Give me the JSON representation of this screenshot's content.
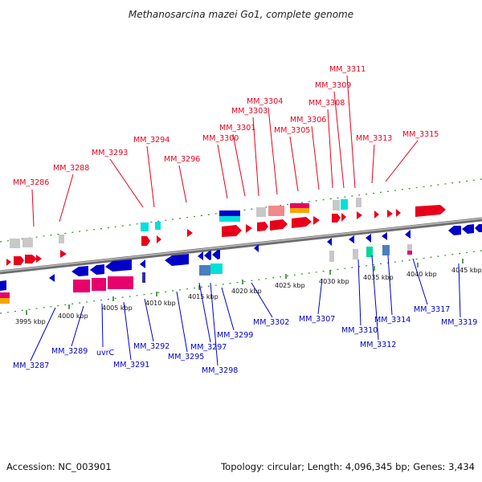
{
  "title": "Methanosarcina mazei Go1, complete genome",
  "footer": {
    "accession": "Accession: NC_003901",
    "summary": "Topology: circular; Length: 4,096,345 bp; Genes: 3,434"
  },
  "colors": {
    "forward_label": "#e8001b",
    "reverse_label": "#0000c8",
    "backbone": "#8c8c8c",
    "tick": "#1f7a1f"
  },
  "scale_ticks": [
    "3995 kbp",
    "4000 kbp",
    "4005 kbp",
    "4010 kbp",
    "4015 kbp",
    "4020 kbp",
    "4025 kbp",
    "4030 kbp",
    "4035 kbp",
    "4040 kbp",
    "4045 kbp"
  ],
  "forward_genes": [
    "MM_3286",
    "MM_3288",
    "MM_3293",
    "MM_3294",
    "MM_3296",
    "MM_3300",
    "MM_3301",
    "MM_3303",
    "MM_3304",
    "MM_3305",
    "MM_3306",
    "MM_3308",
    "MM_3309",
    "MM_3311",
    "MM_3313",
    "MM_3315"
  ],
  "reverse_genes": [
    "MM_3287",
    "MM_3289",
    "uvrC",
    "MM_3291",
    "MM_3292",
    "MM_3295",
    "MM_3297",
    "MM_3298",
    "MM_3299",
    "MM_3302",
    "MM_3307",
    "MM_3310",
    "MM_3312",
    "MM_3314",
    "MM_3317",
    "MM_3319"
  ]
}
